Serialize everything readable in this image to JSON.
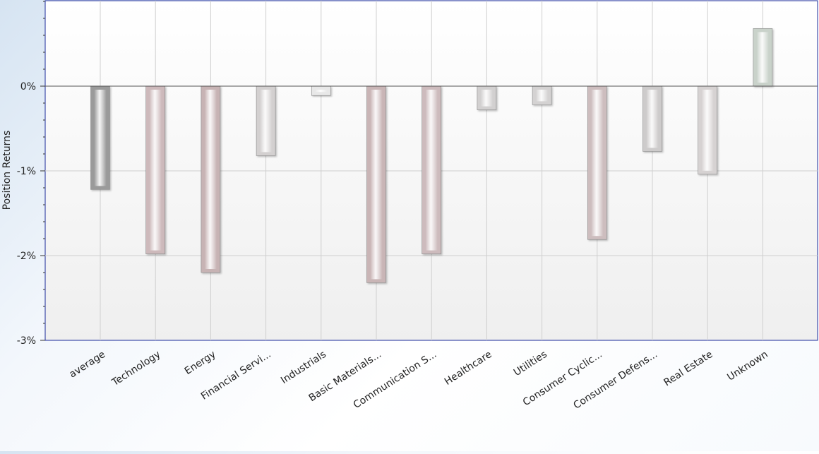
{
  "chart_data": {
    "type": "bar",
    "title": "",
    "xlabel": "",
    "ylabel": "Position Returns",
    "ylim": [
      -3,
      1
    ],
    "yticks": [
      {
        "value": 0,
        "label": "0%"
      },
      {
        "value": -1,
        "label": "-1%"
      },
      {
        "value": -2,
        "label": "-2%"
      },
      {
        "value": -3,
        "label": "-3%"
      }
    ],
    "categories": [
      "average",
      "Technology",
      "Energy",
      "Financial Servi...",
      "Industrials",
      "Basic Materials...",
      "Communication S...",
      "Healthcare",
      "Utilities",
      "Consumer Cyclic...",
      "Consumer Defens...",
      "Real Estate",
      "Unknown"
    ],
    "values": [
      -1.22,
      -1.98,
      -2.2,
      -0.82,
      -0.11,
      -2.32,
      -1.98,
      -0.28,
      -0.22,
      -1.81,
      -0.77,
      -1.04,
      0.68
    ],
    "colors": [
      "#9a9a9a",
      "#cdb9bb",
      "#c7b3b4",
      "#d3d0d0",
      "#e8e8e8",
      "#c9b5b6",
      "#cdbbbd",
      "#d2d0d0",
      "#d4d2d2",
      "#cdbdbe",
      "#cdcbcb",
      "#d6d2d2",
      "#c9d2ca"
    ],
    "grid": true,
    "legend": "none"
  }
}
